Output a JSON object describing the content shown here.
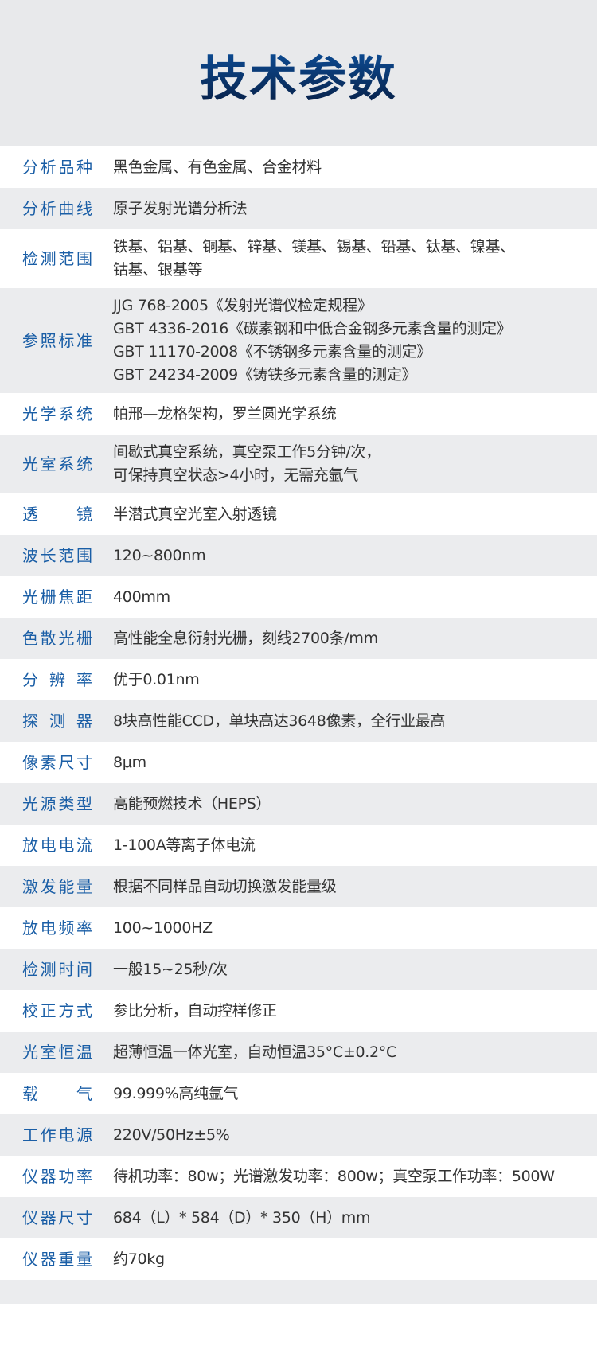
{
  "header": {
    "title": "技术参数"
  },
  "rows": [
    {
      "label": "分析品种",
      "lines": [
        "黑色金属、有色金属、合金材料"
      ]
    },
    {
      "label": "分析曲线",
      "lines": [
        "原子发射光谱分析法"
      ]
    },
    {
      "label": "检测范围",
      "lines": [
        "铁基、铝基、铜基、锌基、镁基、锡基、铅基、钛基、镍基、",
        "钴基、银基等"
      ]
    },
    {
      "label": "参照标准",
      "lines": [
        "JJG 768-2005《发射光谱仪检定规程》",
        "GBT 4336-2016《碳素钢和中低合金钢多元素含量的测定》",
        "GBT 11170-2008《不锈钢多元素含量的测定》",
        "GBT 24234-2009《铸铁多元素含量的测定》"
      ]
    },
    {
      "label": "光学系统",
      "lines": [
        "帕邢—龙格架构，罗兰圆光学系统"
      ]
    },
    {
      "label": "光室系统",
      "lines": [
        "间歇式真空系统，真空泵工作5分钟/次，",
        "可保持真空状态>4小时，无需充氩气"
      ]
    },
    {
      "label": "透镜",
      "lines": [
        "半潜式真空光室入射透镜"
      ]
    },
    {
      "label": "波长范围",
      "lines": [
        "120~800nm"
      ]
    },
    {
      "label": "光栅焦距",
      "lines": [
        "400mm"
      ]
    },
    {
      "label": "色散光栅",
      "lines": [
        "高性能全息衍射光栅，刻线2700条/mm"
      ]
    },
    {
      "label": "分辨率",
      "lines": [
        "优于0.01nm"
      ]
    },
    {
      "label": "探测器",
      "lines": [
        "8块高性能CCD，单块高达3648像素，全行业最高"
      ]
    },
    {
      "label": "像素尺寸",
      "lines": [
        "8μm"
      ]
    },
    {
      "label": "光源类型",
      "lines": [
        "高能预燃技术（HEPS）"
      ]
    },
    {
      "label": "放电电流",
      "lines": [
        "1-100A等离子体电流"
      ]
    },
    {
      "label": "激发能量",
      "lines": [
        "根据不同样品自动切换激发能量级"
      ]
    },
    {
      "label": "放电频率",
      "lines": [
        "100~1000HZ"
      ]
    },
    {
      "label": "检测时间",
      "lines": [
        "一般15~25秒/次"
      ]
    },
    {
      "label": "校正方式",
      "lines": [
        "参比分析，自动控样修正"
      ]
    },
    {
      "label": "光室恒温",
      "lines": [
        "超薄恒温一体光室，自动恒温35°C±0.2°C"
      ]
    },
    {
      "label": "载气",
      "lines": [
        "99.999%高纯氩气"
      ]
    },
    {
      "label": "工作电源",
      "lines": [
        "220V/50Hz±5%"
      ]
    },
    {
      "label": "仪器功率",
      "lines": [
        "待机功率：80w；光谱激发功率：800w；真空泵工作功率：500W"
      ]
    },
    {
      "label": "仪器尺寸",
      "lines": [
        "684（L）* 584（D）* 350（H）mm"
      ]
    },
    {
      "label": "仪器重量",
      "lines": [
        "约70kg"
      ]
    }
  ],
  "colors": {
    "label": "#1a5ea6",
    "text": "#333333",
    "stripe": "#ebecee",
    "title": "#0b3a78"
  }
}
